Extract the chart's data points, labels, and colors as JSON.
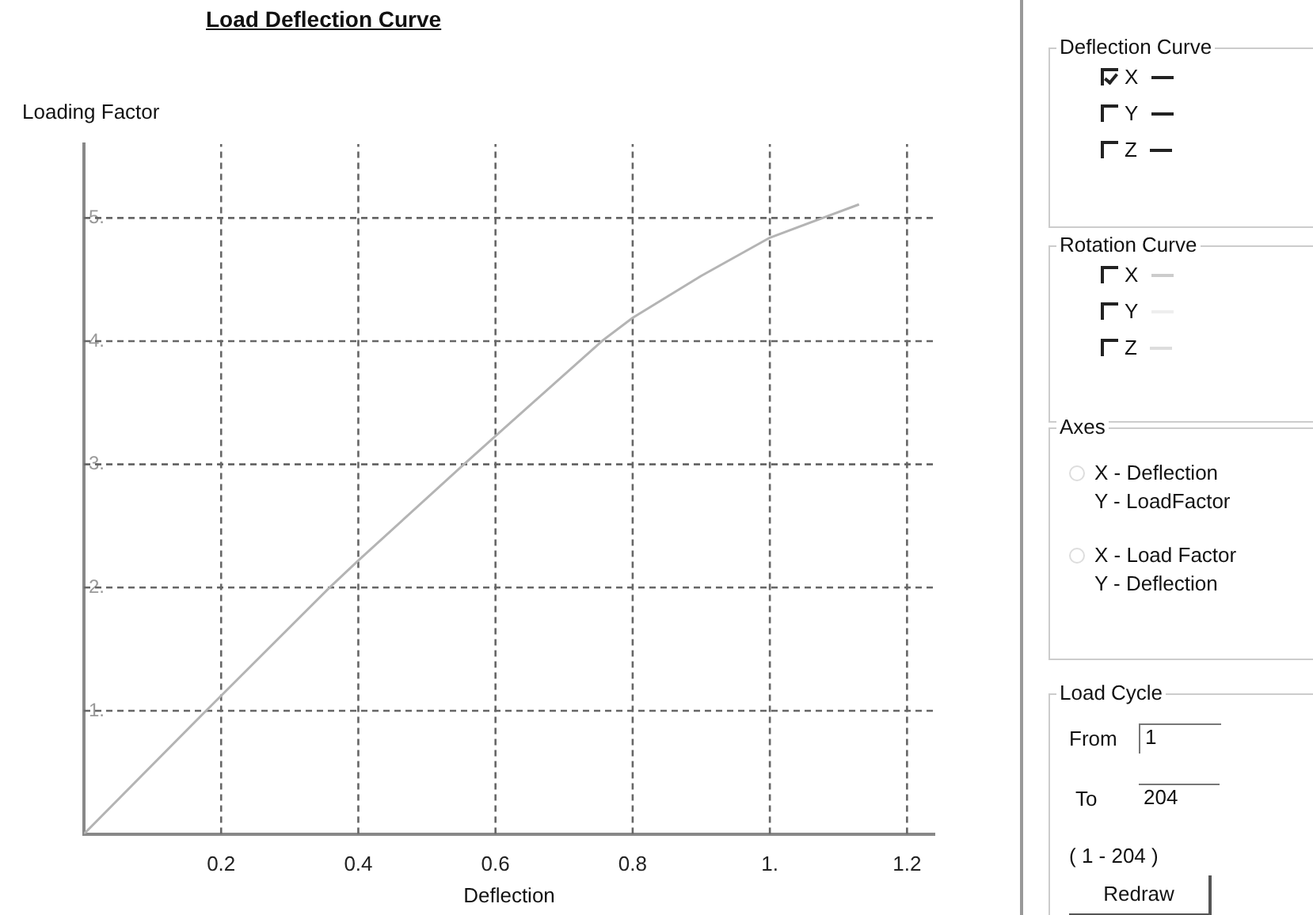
{
  "chart_data": {
    "type": "line",
    "title": "Load Deflection Curve",
    "xlabel": "Deflection",
    "ylabel": "Loading Factor",
    "x": [
      0,
      0.178,
      0.358,
      0.4,
      0.554,
      0.6,
      0.755,
      0.8,
      0.9,
      1.0,
      1.077,
      1.13
    ],
    "series": [
      {
        "color": "#b4b4b4",
        "values": [
          0,
          1,
          2,
          2.22,
          3,
          3.23,
          4,
          4.19,
          4.53,
          4.84,
          5,
          5.11
        ]
      }
    ],
    "xlim": [
      0,
      1.24
    ],
    "ylim": [
      0,
      5.6
    ],
    "xticks": [
      0.2,
      0.4,
      0.6,
      {
        "value": 0.8,
        "label": "0.8"
      },
      {
        "value": 1,
        "label": "1."
      },
      1.2
    ],
    "yticks": [
      {
        "value": 1,
        "label": "1."
      },
      {
        "value": 2,
        "label": "2."
      },
      {
        "value": 3,
        "label": "3."
      },
      {
        "value": 4,
        "label": "4."
      },
      {
        "value": 5,
        "label": "5."
      }
    ],
    "grid": true,
    "line_style": "solid",
    "marker": "none",
    "legend": false,
    "annotations": [
      "Deflection Curve",
      "X",
      "Y",
      "Z",
      "Rotation Curve",
      "X",
      "Y",
      "Z",
      "Axes",
      "X - Deflection",
      "Y - LoadFactor",
      "X - Load Factor",
      "Y - Deflection",
      "Load Cycle",
      "From",
      "1",
      "To",
      "204",
      "( 1 - 204 )",
      "Redraw"
    ]
  }
}
